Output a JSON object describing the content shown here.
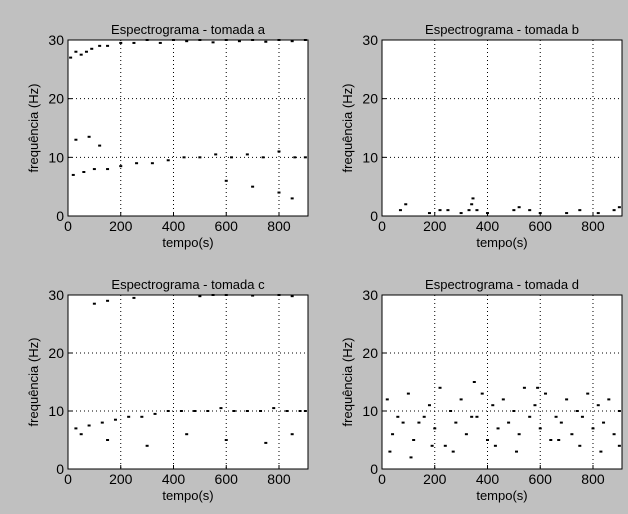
{
  "chart_data": [
    {
      "type": "scatter",
      "title": "Espectrograma - tomada a",
      "xlabel": "tempo(s)",
      "ylabel": "frequência (Hz)",
      "color": "#000000",
      "grid": true,
      "xlim": [
        0,
        910
      ],
      "ylim": [
        0,
        30
      ],
      "xticks": [
        0,
        200,
        400,
        600,
        800
      ],
      "yticks": [
        0,
        10,
        20,
        30
      ],
      "x": [
        10,
        30,
        50,
        70,
        90,
        120,
        150,
        200,
        250,
        300,
        350,
        400,
        450,
        500,
        550,
        600,
        650,
        700,
        750,
        800,
        850,
        900,
        20,
        60,
        100,
        150,
        200,
        260,
        320,
        380,
        440,
        500,
        560,
        620,
        680,
        740,
        800,
        860,
        900,
        30,
        80,
        120,
        600,
        700,
        800,
        850
      ],
      "y": [
        27,
        28,
        27.5,
        28,
        28.5,
        29,
        29,
        29.5,
        29.5,
        30,
        29.5,
        30,
        29.8,
        30,
        29.6,
        30,
        29.8,
        30,
        29.7,
        30,
        29.8,
        30,
        7,
        7.5,
        8,
        8,
        8.5,
        9,
        9,
        9.5,
        10,
        10,
        10.5,
        10,
        10.5,
        10,
        11,
        10,
        10,
        13,
        13.5,
        12,
        6,
        5,
        4,
        3
      ]
    },
    {
      "type": "scatter",
      "title": "Espectrograma - tomada b",
      "xlabel": "tempo(s)",
      "ylabel": "frequência (Hz)",
      "color": "#000000",
      "grid": true,
      "xlim": [
        0,
        910
      ],
      "ylim": [
        0,
        30
      ],
      "xticks": [
        0,
        200,
        400,
        600,
        800
      ],
      "yticks": [
        0,
        10,
        20,
        30
      ],
      "x": [
        70,
        90,
        180,
        220,
        250,
        300,
        330,
        340,
        345,
        360,
        400,
        500,
        520,
        560,
        600,
        700,
        750,
        820,
        880,
        900
      ],
      "y": [
        1,
        2,
        0.5,
        1,
        1,
        0.5,
        1,
        2,
        3,
        1,
        0.5,
        1,
        1.5,
        1,
        0.5,
        0.5,
        1,
        0.5,
        1,
        1.5
      ]
    },
    {
      "type": "scatter",
      "title": "Espectrograma - tomada c",
      "xlabel": "tempo(s)",
      "ylabel": "frequência (Hz)",
      "color": "#000000",
      "grid": true,
      "xlim": [
        0,
        910
      ],
      "ylim": [
        0,
        30
      ],
      "xticks": [
        0,
        200,
        400,
        600,
        800
      ],
      "yticks": [
        0,
        10,
        20,
        30
      ],
      "x": [
        100,
        150,
        250,
        500,
        550,
        600,
        700,
        800,
        850,
        30,
        80,
        130,
        180,
        230,
        280,
        330,
        380,
        430,
        480,
        530,
        580,
        630,
        680,
        730,
        780,
        830,
        880,
        900,
        50,
        150,
        300,
        450,
        600,
        750,
        850
      ],
      "y": [
        28.5,
        29,
        29.5,
        29.8,
        30,
        30,
        29.9,
        30,
        29.8,
        7,
        7.5,
        8,
        8.5,
        9,
        9,
        9.5,
        10,
        10,
        10,
        10,
        10.5,
        10,
        10,
        10,
        10.5,
        10,
        10,
        10,
        6,
        5,
        4,
        6,
        5,
        4.5,
        6
      ]
    },
    {
      "type": "scatter",
      "title": "Espectrograma - tomada d",
      "xlabel": "tempo(s)",
      "ylabel": "frequência (Hz)",
      "color": "#000000",
      "grid": true,
      "xlim": [
        0,
        910
      ],
      "ylim": [
        0,
        30
      ],
      "xticks": [
        0,
        200,
        400,
        600,
        800
      ],
      "yticks": [
        0,
        10,
        20,
        30
      ],
      "x": [
        20,
        60,
        100,
        140,
        180,
        220,
        260,
        300,
        340,
        380,
        420,
        460,
        500,
        540,
        580,
        620,
        660,
        700,
        740,
        780,
        820,
        860,
        900,
        40,
        80,
        120,
        160,
        200,
        240,
        280,
        320,
        360,
        400,
        440,
        480,
        520,
        560,
        600,
        640,
        680,
        720,
        760,
        800,
        840,
        880,
        30,
        110,
        190,
        270,
        350,
        430,
        510,
        590,
        670,
        750,
        830,
        900
      ],
      "y": [
        12,
        9,
        13,
        8,
        11,
        14,
        10,
        12,
        9,
        13,
        11,
        12,
        10,
        14,
        11,
        13,
        9,
        12,
        10,
        13,
        11,
        12,
        10,
        6,
        8,
        5,
        9,
        7,
        4,
        8,
        6,
        9,
        5,
        7,
        8,
        6,
        9,
        7,
        5,
        8,
        6,
        9,
        7,
        8,
        6,
        3,
        2,
        4,
        3,
        15,
        4,
        3,
        14,
        5,
        4,
        3,
        4
      ]
    }
  ]
}
